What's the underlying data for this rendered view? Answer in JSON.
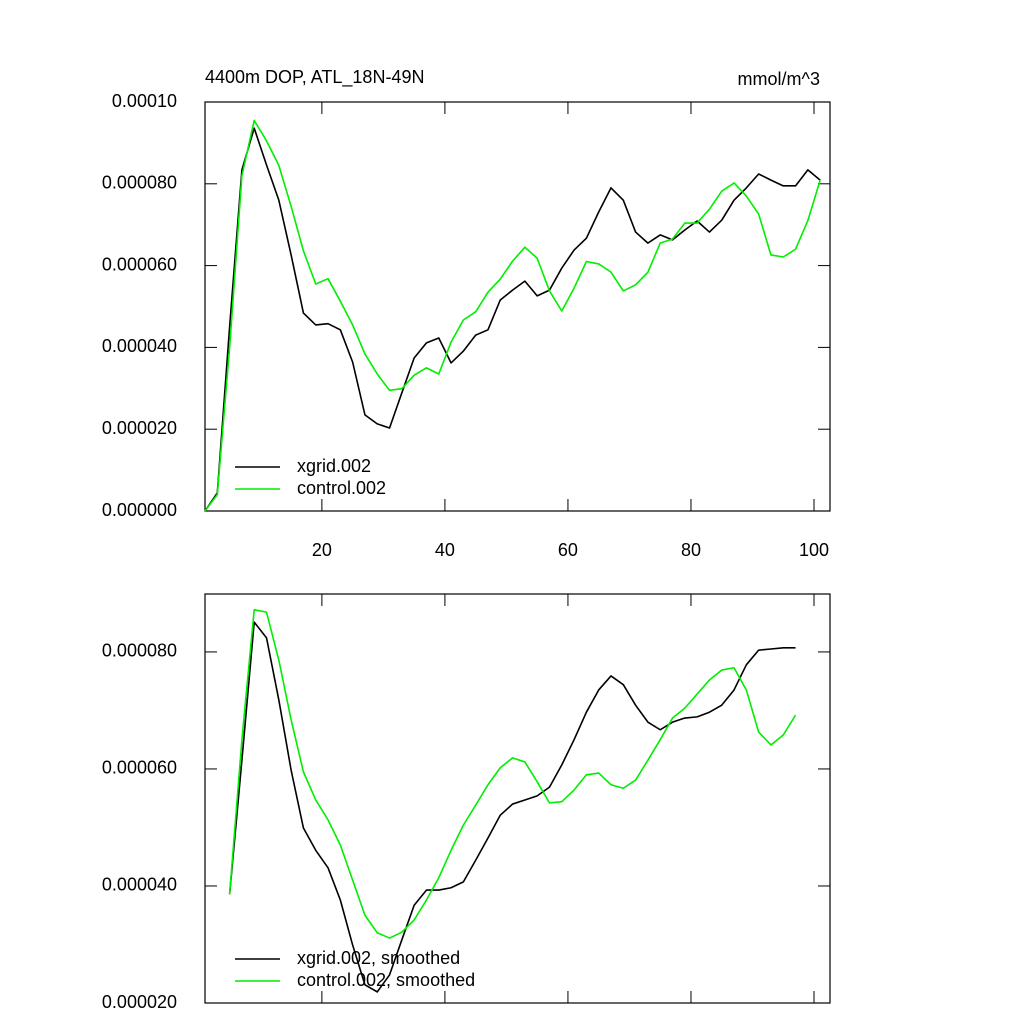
{
  "chart_data": [
    {
      "type": "line",
      "title": "4400m DOP, ATL_18N-49N",
      "subtitle": "mmol/m^3",
      "x": [
        1,
        3,
        5,
        7,
        9,
        11,
        13,
        15,
        17,
        19,
        21,
        23,
        25,
        27,
        29,
        31,
        33,
        35,
        37,
        39,
        41,
        43,
        45,
        47,
        49,
        51,
        53,
        55,
        57,
        59,
        61,
        63,
        65,
        67,
        69,
        71,
        73,
        75,
        77,
        79,
        81,
        83,
        85,
        87,
        89,
        91,
        93,
        95,
        97,
        99,
        101
      ],
      "series": [
        {
          "name": "xgrid.002",
          "color": "#000000",
          "values": [
            0.0,
            4.4e-06,
            4.5e-05,
            8.34e-05,
            9.36e-05,
            8.46e-05,
            7.6e-05,
            6.26e-05,
            4.84e-05,
            4.55e-05,
            4.58e-05,
            4.43e-05,
            3.64e-05,
            2.35e-05,
            2.13e-05,
            2.03e-05,
            2.89e-05,
            3.74e-05,
            4.11e-05,
            4.23e-05,
            3.62e-05,
            3.91e-05,
            4.3e-05,
            4.43e-05,
            5.16e-05,
            5.4e-05,
            5.62e-05,
            5.26e-05,
            5.4e-05,
            5.94e-05,
            6.38e-05,
            6.67e-05,
            7.31e-05,
            7.9e-05,
            7.6e-05,
            6.82e-05,
            6.55e-05,
            6.75e-05,
            6.63e-05,
            6.87e-05,
            7.09e-05,
            6.82e-05,
            7.11e-05,
            7.6e-05,
            7.9e-05,
            8.24e-05,
            8.09e-05,
            7.95e-05,
            7.95e-05,
            8.34e-05,
            8.09e-05
          ]
        },
        {
          "name": "control.002",
          "color": "#00ee00",
          "values": [
            0.0,
            4e-06,
            4e-05,
            8.2e-05,
            9.55e-05,
            9.05e-05,
            8.45e-05,
            7.45e-05,
            6.36e-05,
            5.55e-05,
            5.68e-05,
            5.13e-05,
            4.55e-05,
            3.84e-05,
            3.35e-05,
            2.95e-05,
            2.99e-05,
            3.32e-05,
            3.5e-05,
            3.35e-05,
            4.13e-05,
            4.67e-05,
            4.87e-05,
            5.35e-05,
            5.67e-05,
            6.11e-05,
            6.45e-05,
            6.18e-05,
            5.38e-05,
            4.89e-05,
            5.45e-05,
            6.1e-05,
            6.04e-05,
            5.84e-05,
            5.38e-05,
            5.53e-05,
            5.84e-05,
            6.55e-05,
            6.65e-05,
            7.04e-05,
            7.04e-05,
            7.38e-05,
            7.82e-05,
            8.02e-05,
            7.7e-05,
            7.26e-05,
            6.26e-05,
            6.21e-05,
            6.4e-05,
            7.1e-05,
            8.09e-05
          ]
        }
      ],
      "xlim": [
        1,
        102.6
      ],
      "xticks": [
        20,
        40,
        60,
        80,
        100
      ],
      "ylim": [
        0,
        0.0001
      ],
      "yticks": [
        {
          "value": 0,
          "label": "0.000000"
        },
        {
          "value": 2e-05,
          "label": "0.000020"
        },
        {
          "value": 4e-05,
          "label": "0.000040"
        },
        {
          "value": 6e-05,
          "label": "0.000060"
        },
        {
          "value": 8e-05,
          "label": "0.000080"
        },
        {
          "value": 0.0001,
          "label": "0.00010"
        }
      ],
      "legend": "lower left"
    },
    {
      "type": "line",
      "x": [
        5,
        7,
        9,
        11,
        13,
        15,
        17,
        19,
        21,
        23,
        25,
        27,
        29,
        31,
        33,
        35,
        37,
        39,
        41,
        43,
        45,
        47,
        49,
        51,
        53,
        55,
        57,
        59,
        61,
        63,
        65,
        67,
        69,
        71,
        73,
        75,
        77,
        79,
        81,
        83,
        85,
        87,
        89,
        91,
        93,
        95,
        97
      ],
      "series": [
        {
          "name": "xgrid.002, smoothed",
          "color": "#000000",
          "values": [
            3.86e-05,
            6.15e-05,
            8.51e-05,
            8.24e-05,
            7.18e-05,
            5.98e-05,
            4.99e-05,
            4.61e-05,
            4.31e-05,
            3.76e-05,
            2.99e-05,
            2.31e-05,
            2.19e-05,
            2.48e-05,
            3.08e-05,
            3.67e-05,
            3.93e-05,
            3.93e-05,
            3.97e-05,
            4.07e-05,
            4.44e-05,
            4.82e-05,
            5.21e-05,
            5.4e-05,
            5.47e-05,
            5.54e-05,
            5.69e-05,
            6.07e-05,
            6.5e-05,
            6.97e-05,
            7.35e-05,
            7.59e-05,
            7.44e-05,
            7.09e-05,
            6.8e-05,
            6.67e-05,
            6.8e-05,
            6.87e-05,
            6.89e-05,
            6.97e-05,
            7.09e-05,
            7.35e-05,
            7.78e-05,
            8.03e-05,
            8.05e-05,
            8.07e-05,
            8.07e-05
          ]
        },
        {
          "name": "control.002, smoothed",
          "color": "#00ee00",
          "values": [
            3.86e-05,
            6.5e-05,
            8.72e-05,
            8.68e-05,
            7.86e-05,
            6.84e-05,
            5.95e-05,
            5.47e-05,
            5.13e-05,
            4.7e-05,
            4.1e-05,
            3.5e-05,
            3.2e-05,
            3.11e-05,
            3.21e-05,
            3.42e-05,
            3.76e-05,
            4.14e-05,
            4.61e-05,
            5.04e-05,
            5.38e-05,
            5.73e-05,
            6.02e-05,
            6.19e-05,
            6.12e-05,
            5.78e-05,
            5.42e-05,
            5.44e-05,
            5.64e-05,
            5.9e-05,
            5.93e-05,
            5.73e-05,
            5.67e-05,
            5.81e-05,
            6.15e-05,
            6.5e-05,
            6.87e-05,
            7.04e-05,
            7.28e-05,
            7.52e-05,
            7.69e-05,
            7.73e-05,
            7.35e-05,
            6.63e-05,
            6.41e-05,
            6.58e-05,
            6.92e-05
          ]
        }
      ],
      "xlim": [
        1,
        102.6
      ],
      "xticks": [
        20,
        40,
        60,
        80,
        100
      ],
      "ylim": [
        2e-05,
        8.99e-05
      ],
      "yticks": [
        {
          "value": 2e-05,
          "label": "0.000020"
        },
        {
          "value": 4e-05,
          "label": "0.000040"
        },
        {
          "value": 6e-05,
          "label": "0.000060"
        },
        {
          "value": 8e-05,
          "label": "0.000080"
        }
      ],
      "legend": "lower left"
    }
  ]
}
